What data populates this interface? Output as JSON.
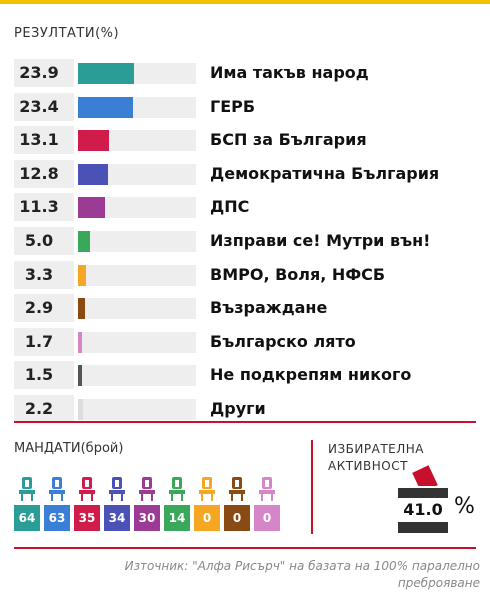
{
  "header": {
    "title": "РЕЗУЛТАТИ(%)"
  },
  "chart_data": {
    "type": "bar",
    "title": "РЕЗУЛТАТИ(%)",
    "categories": [
      "Има такъв народ",
      "ГЕРБ",
      "БСП за България",
      "Демократична България",
      "ДПС",
      "Изправи се! Мутри вън!",
      "ВМРО, Воля, НФСБ",
      "Възраждане",
      "Българско лято",
      "Не подкрепям никого",
      "Други"
    ],
    "values": [
      23.9,
      23.4,
      13.1,
      12.8,
      11.3,
      5.0,
      3.3,
      2.9,
      1.7,
      1.5,
      2.2
    ],
    "value_labels": [
      "23.9",
      "23.4",
      "13.1",
      "12.8",
      "11.3",
      "5.0",
      "3.3",
      "2.9",
      "1.7",
      "1.5",
      "2.2"
    ],
    "colors": [
      "#2a9d96",
      "#3a7fd5",
      "#d01c4b",
      "#4b52b5",
      "#9c3b93",
      "#3aa85a",
      "#f5a623",
      "#8a4a13",
      "#d486c8",
      "#555555",
      "#dddddd"
    ],
    "xlim": [
      0,
      50
    ]
  },
  "mandates": {
    "title": "МАНДАТИ(брой)",
    "seats": [
      {
        "count": "64",
        "color": "#2a9d96"
      },
      {
        "count": "63",
        "color": "#3a7fd5"
      },
      {
        "count": "35",
        "color": "#d01c4b"
      },
      {
        "count": "34",
        "color": "#4b52b5"
      },
      {
        "count": "30",
        "color": "#9c3b93"
      },
      {
        "count": "14",
        "color": "#3aa85a"
      },
      {
        "count": "0",
        "color": "#f5a623"
      },
      {
        "count": "0",
        "color": "#8a4a13"
      },
      {
        "count": "0",
        "color": "#d486c8"
      }
    ]
  },
  "turnout": {
    "title": "ИЗБИРАТЕЛНА АКТИВНОСТ",
    "value": "41.0",
    "unit": "%"
  },
  "footer": {
    "source": "Източник: \"Алфа Рисърч\" на базата на 100% паралелно преброяване"
  },
  "colors": {
    "accent": "#c8102e",
    "topbar": "#f2c200"
  }
}
